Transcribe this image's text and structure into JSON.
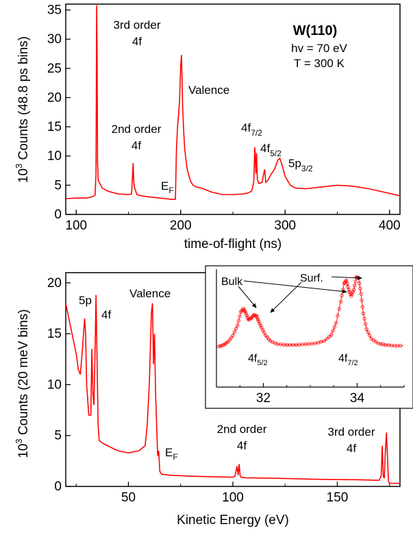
{
  "colors": {
    "trace": "#ff0000",
    "axis": "#000000",
    "background": "#ffffff"
  },
  "chart_data": [
    {
      "type": "line",
      "xlabel": "time-of-flight (ns)",
      "ylabel_prefix": "10",
      "ylabel_exp": "3",
      "ylabel_rest": " Counts (48.8 ps bins)",
      "xlim": [
        90,
        410
      ],
      "ylim": [
        0,
        36
      ],
      "xticks": [
        100,
        200,
        300,
        400
      ],
      "yticks": [
        0,
        5,
        10,
        15,
        20,
        25,
        30,
        35
      ],
      "series": [
        {
          "x": [
            90,
            100,
            110,
            115,
            118,
            119,
            119.6,
            120,
            120.4,
            121,
            122,
            125,
            130,
            140,
            150,
            153,
            154.5,
            155,
            155.5,
            156,
            157,
            158,
            162,
            170,
            180,
            190,
            195,
            196,
            197,
            198,
            199,
            200,
            200.8,
            201.5,
            202,
            203,
            204,
            206,
            208,
            210,
            212,
            215,
            220,
            230,
            240,
            250,
            260,
            265,
            268,
            270,
            271,
            271.6,
            272,
            272.6,
            273.5,
            275,
            278,
            279.5,
            280.5,
            281.5,
            283,
            286,
            290,
            293,
            295,
            297,
            300,
            305,
            310,
            320,
            330,
            340,
            350,
            360,
            370,
            380,
            390,
            400,
            410
          ],
          "y": [
            2.7,
            2.8,
            2.8,
            3.0,
            3.3,
            7.0,
            35.8,
            27.0,
            9.0,
            6.0,
            5.5,
            4.5,
            4.0,
            3.5,
            3.4,
            3.5,
            8.8,
            6.0,
            5.0,
            4.5,
            4.0,
            3.4,
            3.2,
            3.0,
            2.8,
            2.6,
            2.6,
            11.0,
            15.0,
            17.0,
            19.5,
            25.5,
            27.3,
            22.0,
            18.0,
            14.0,
            11.0,
            8.0,
            6.5,
            5.5,
            5.0,
            4.7,
            4.5,
            3.8,
            3.4,
            3.4,
            3.5,
            3.7,
            4.0,
            5.5,
            11.5,
            9.0,
            7.0,
            10.5,
            6.0,
            5.3,
            5.5,
            7.0,
            7.7,
            5.5,
            5.7,
            6.7,
            7.8,
            9.3,
            9.6,
            8.5,
            6.5,
            5.0,
            4.5,
            4.4,
            4.6,
            4.8,
            5.0,
            4.9,
            4.7,
            4.4,
            4.0,
            3.6,
            3.2
          ]
        }
      ],
      "annotations": {
        "third_order": "3rd order",
        "third_order_4f": "4f",
        "second_order": "2nd order",
        "second_order_4f": "4f",
        "valence": "Valence",
        "ef": "E",
        "ef_sub": "F",
        "f72": "4f",
        "f72_sub": "7/2",
        "f52": "4f",
        "f52_sub": "5/2",
        "p32": "5p",
        "p32_sub": "3/2",
        "sample": "W(110)",
        "photon": "hv = 70 eV",
        "temp": "T = 300 K"
      }
    },
    {
      "type": "line",
      "xlabel": "Kinetic Energy (eV)",
      "ylabel_prefix": "10",
      "ylabel_exp": "3",
      "ylabel_rest": " Counts (20 meV bins)",
      "xlim": [
        20,
        180
      ],
      "ylim": [
        0,
        21
      ],
      "xticks": [
        50,
        100,
        150
      ],
      "yticks": [
        0,
        5,
        10,
        15,
        20
      ],
      "series": [
        {
          "x": [
            20,
            21,
            23,
            25,
            26,
            27,
            28,
            29,
            29.5,
            30,
            31,
            32,
            32.5,
            33,
            33.5,
            34,
            34.5,
            35,
            35.5,
            36,
            38,
            40,
            45,
            50,
            55,
            58,
            59,
            60,
            61,
            61.5,
            62,
            62.5,
            63,
            63.5,
            64,
            64.5,
            65,
            65.5,
            66,
            70,
            80,
            90,
            100,
            101,
            102,
            102.5,
            103,
            103.5,
            104,
            106,
            120,
            140,
            160,
            170,
            171,
            171.5,
            172,
            172.5,
            173,
            173.5,
            174,
            174.5,
            175,
            180
          ],
          "y": [
            18.0,
            17.0,
            15.0,
            13.0,
            11.5,
            11.0,
            13.5,
            16.5,
            15.0,
            10.0,
            7.0,
            7.0,
            13.5,
            9.0,
            8.0,
            13.0,
            18.8,
            12.0,
            6.0,
            4.5,
            4.2,
            4.0,
            3.5,
            3.3,
            3.5,
            4.0,
            6.0,
            10.0,
            17.0,
            18.0,
            12.0,
            15.0,
            9.0,
            6.0,
            3.0,
            3.5,
            1.5,
            1.3,
            1.2,
            1.1,
            1.0,
            0.95,
            0.9,
            1.0,
            2.0,
            1.1,
            2.2,
            1.0,
            0.9,
            0.85,
            0.8,
            0.7,
            0.65,
            0.6,
            1.0,
            4.0,
            1.0,
            0.8,
            3.5,
            5.3,
            3.0,
            0.5,
            0.3,
            0.3
          ],
          "note": "spikes at ~29 eV, ~34 eV, ~62 eV, ~102 eV, ~172-174 eV"
        }
      ],
      "annotations": {
        "p5": "5p",
        "f4": "4f",
        "valence": "Valence",
        "ef": "E",
        "ef_sub": "F",
        "second_order": "2nd order",
        "second_order_4f": "4f",
        "third_order": "3rd order",
        "third_order_4f": "4f"
      }
    },
    {
      "type": "scatter",
      "inset": true,
      "xlim": [
        31,
        35
      ],
      "ylim": [
        0,
        1
      ],
      "xticks": [
        32,
        34
      ],
      "series": [
        {
          "x": [
            31.05,
            31.15,
            31.25,
            31.35,
            31.45,
            31.52,
            31.58,
            31.63,
            31.68,
            31.74,
            31.8,
            31.85,
            31.9,
            31.96,
            32.05,
            32.15,
            32.3,
            32.5,
            32.7,
            32.9,
            33.1,
            33.3,
            33.45,
            33.55,
            33.65,
            33.72,
            33.77,
            33.82,
            33.87,
            33.93,
            33.98,
            34.03,
            34.08,
            34.13,
            34.2,
            34.3,
            34.45,
            34.6,
            34.8,
            34.98
          ],
          "y": [
            0.08,
            0.1,
            0.14,
            0.22,
            0.35,
            0.52,
            0.56,
            0.5,
            0.42,
            0.44,
            0.48,
            0.47,
            0.4,
            0.32,
            0.22,
            0.15,
            0.11,
            0.1,
            0.1,
            0.11,
            0.12,
            0.15,
            0.23,
            0.38,
            0.65,
            0.88,
            0.92,
            0.8,
            0.72,
            0.8,
            0.96,
            0.95,
            0.75,
            0.5,
            0.3,
            0.18,
            0.12,
            0.1,
            0.09,
            0.09
          ]
        }
      ],
      "labels": {
        "bulk": "Bulk",
        "surf": "Surf.",
        "f52": "4f",
        "f52_sub": "5/2",
        "f72": "4f",
        "f72_sub": "7/2"
      }
    }
  ]
}
